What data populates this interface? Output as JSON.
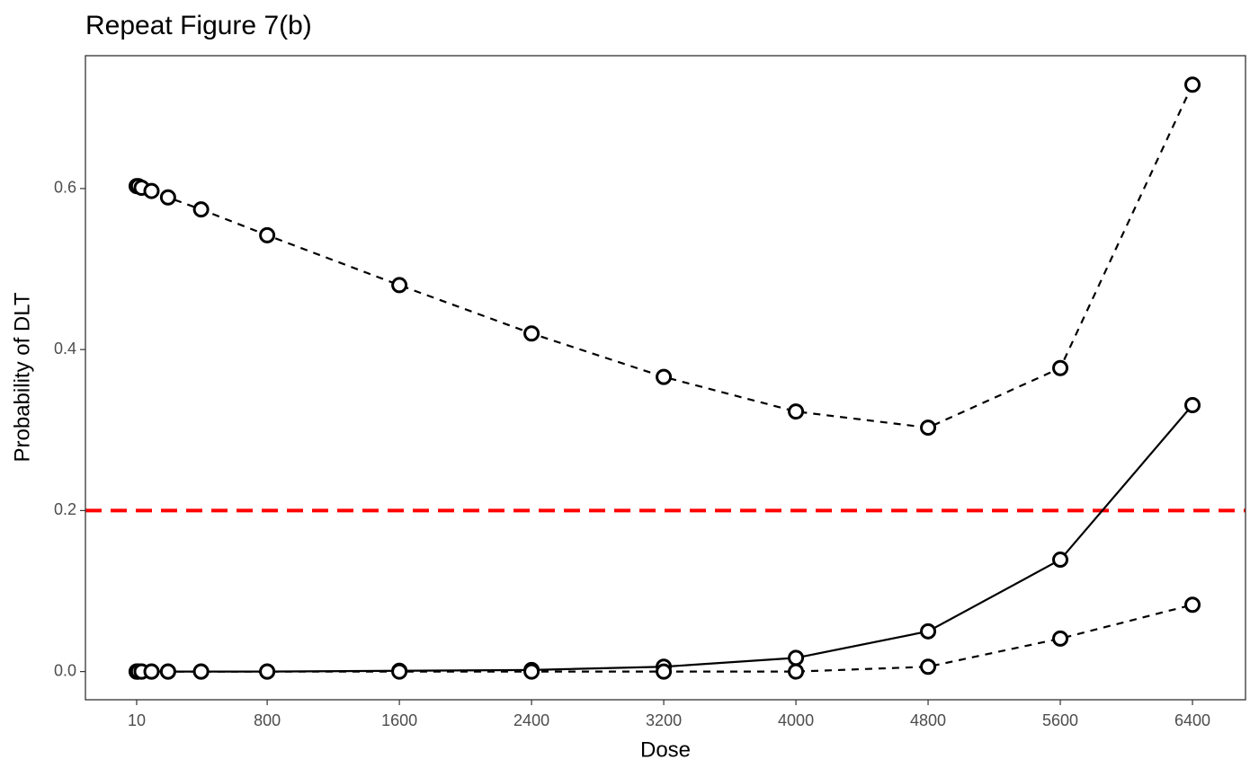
{
  "chart_data": {
    "type": "line",
    "title": "Repeat Figure 7(b)",
    "x_label": "Dose",
    "y_label": "Probability of DLT",
    "x": [
      10,
      20,
      40,
      100,
      200,
      400,
      800,
      1600,
      2400,
      3200,
      4000,
      4800,
      5600,
      6400
    ],
    "series": [
      {
        "color": "#000000",
        "dash": true,
        "values": [
          0.603,
          0.603,
          0.601,
          0.597,
          0.589,
          0.574,
          0.542,
          0.48,
          0.42,
          0.366,
          0.323,
          0.303,
          0.377,
          0.729
        ]
      },
      {
        "color": "#000000",
        "dash": false,
        "values": [
          0,
          0,
          0,
          0,
          0,
          0,
          0,
          0.001,
          0.002,
          0.006,
          0.017,
          0.05,
          0.139,
          0.331
        ]
      },
      {
        "color": "#000000",
        "dash": true,
        "values": [
          0,
          0,
          0,
          0,
          0,
          0,
          0,
          0,
          0,
          0,
          0,
          0.006,
          0.041,
          0.083
        ]
      }
    ],
    "reference_line": {
      "value": 0.2,
      "color": "#ff0000"
    },
    "xlim": [
      -300,
      6721
    ],
    "ylim": [
      -0.035,
      0.765
    ],
    "xticks": [
      10,
      800,
      1600,
      2400,
      3200,
      4000,
      4800,
      5600,
      6400
    ],
    "yticks": [
      {
        "value": 0,
        "label": "0.0"
      },
      0.2,
      0.4,
      0.6
    ]
  }
}
